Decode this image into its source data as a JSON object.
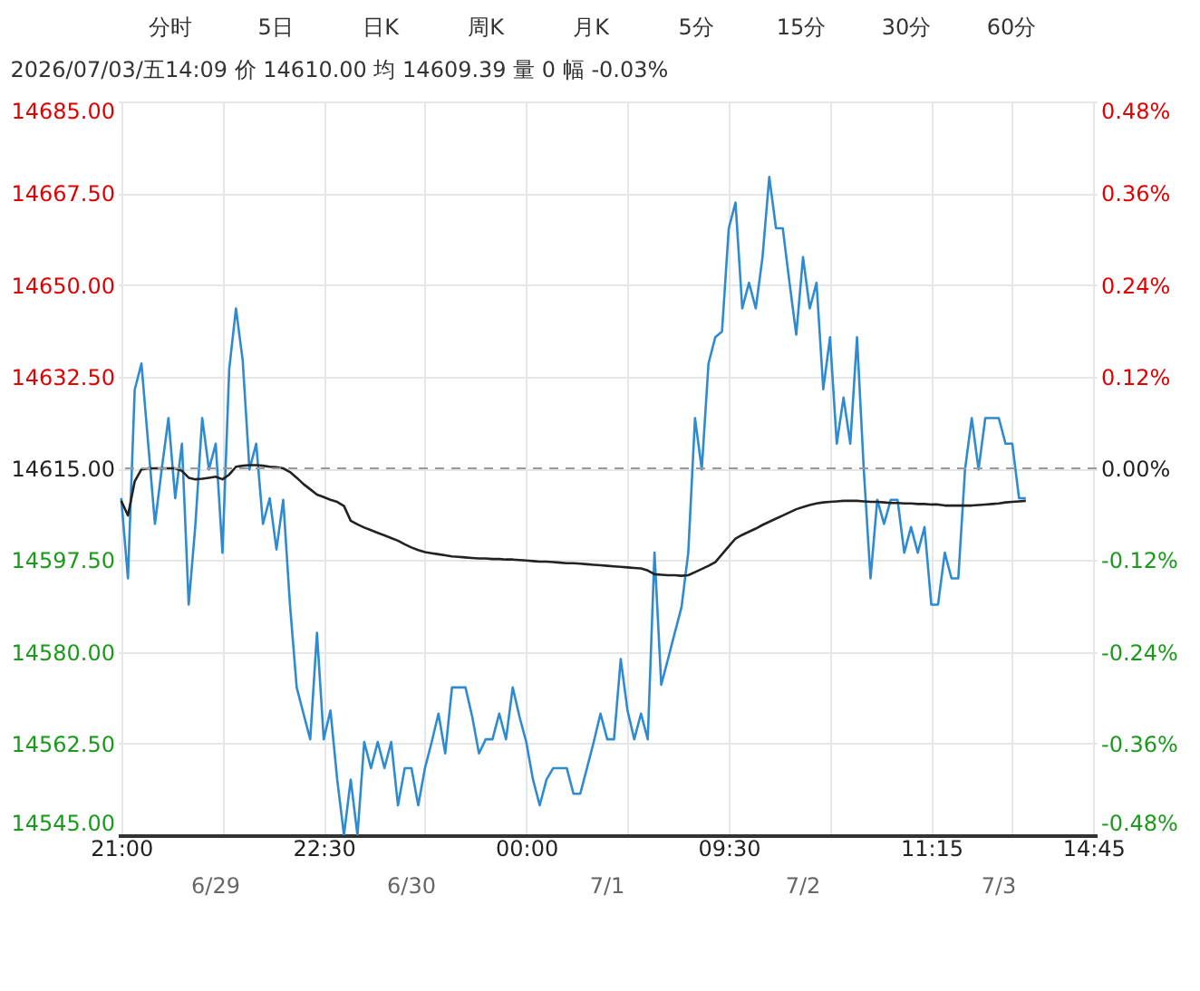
{
  "chart_data": {
    "type": "line",
    "title": "2026/07/03/五14:09  价 14610.00  均 14609.39  量 0  幅 -0.03%",
    "annotations": [
      "分时",
      "5日",
      "日K",
      "周K",
      "月K",
      "5分",
      "15分",
      "30分",
      "60分",
      "6/29",
      "6/30",
      "7/1",
      "7/2",
      "7/3"
    ],
    "categories": [
      "21:00",
      null,
      null,
      null,
      null,
      null,
      null,
      null,
      null,
      null,
      null,
      null,
      null,
      null,
      null,
      null,
      null,
      null,
      null,
      null,
      null,
      null,
      null,
      null,
      null,
      null,
      null,
      null,
      null,
      null,
      "22:30",
      null,
      null,
      null,
      null,
      null,
      null,
      null,
      null,
      null,
      null,
      null,
      null,
      null,
      null,
      null,
      null,
      null,
      null,
      null,
      null,
      null,
      null,
      null,
      null,
      null,
      null,
      null,
      null,
      null,
      "00:00",
      null,
      null,
      null,
      null,
      null,
      null,
      null,
      null,
      null,
      null,
      null,
      null,
      null,
      null,
      null,
      null,
      null,
      null,
      null,
      null,
      null,
      null,
      null,
      null,
      null,
      null,
      null,
      null,
      null,
      "09:30",
      null,
      null,
      null,
      null,
      null,
      null,
      null,
      null,
      null,
      null,
      null,
      null,
      null,
      null,
      null,
      null,
      null,
      null,
      null,
      null,
      null,
      null,
      null,
      null,
      null,
      null,
      null,
      null,
      null,
      "11:15",
      null,
      null,
      null,
      null,
      null,
      null,
      null,
      null,
      null,
      null,
      null,
      null,
      null,
      null,
      null,
      null,
      null,
      null,
      null,
      null,
      null,
      null,
      null,
      "14:45"
    ],
    "series": [
      {
        "color": "#2f8bd0",
        "values": [
          14609.3,
          14594,
          14630,
          14635,
          14619.7,
          14604.4,
          14614.8,
          14624.6,
          14609.3,
          14619.7,
          14589,
          14604.4,
          14624.6,
          14614.8,
          14619.7,
          14598.9,
          14633.9,
          14645.5,
          14635.6,
          14614.8,
          14619.7,
          14604.4,
          14609.3,
          14599.5,
          14609,
          14589,
          14573.2,
          14568.2,
          14563.3,
          14583.6,
          14563.3,
          14568.8,
          14555.6,
          14545,
          14555.6,
          14545,
          14562.8,
          14557.8,
          14562.8,
          14557.8,
          14562.8,
          14550.7,
          14557.8,
          14557.8,
          14550.7,
          14557.8,
          14562.8,
          14568.2,
          14560.6,
          14573.2,
          14573.2,
          14573.2,
          14567.6,
          14560.6,
          14563.3,
          14563.3,
          14568.2,
          14563.3,
          14573.2,
          14567.6,
          14562.8,
          14555.6,
          14550.7,
          14555.6,
          14557.8,
          14557.8,
          14557.8,
          14552.9,
          14552.9,
          14557.8,
          14562.8,
          14568.2,
          14563.3,
          14563.3,
          14578.6,
          14568.8,
          14563.3,
          14568.2,
          14563.3,
          14598.9,
          14573.7,
          14578.6,
          14583.6,
          14588.5,
          14598.9,
          14624.6,
          14614.8,
          14635,
          14640,
          14641.1,
          14660.8,
          14665.7,
          14645.5,
          14650.4,
          14645.5,
          14655.3,
          14670.6,
          14660.8,
          14660.8,
          14650.4,
          14640.5,
          14655.3,
          14645.5,
          14650.4,
          14630.1,
          14640,
          14619.7,
          14628.5,
          14619.7,
          14640,
          14614.8,
          14594,
          14609,
          14604.4,
          14609,
          14609,
          14598.9,
          14603.8,
          14598.9,
          14603.8,
          14589,
          14589,
          14598.9,
          14594,
          14594,
          14614.8,
          14624.6,
          14614.8,
          14624.6,
          14624.6,
          14624.6,
          14619.7,
          14619.7,
          14609.3,
          14609.3,
          null,
          null,
          null,
          null,
          null,
          null,
          null,
          null,
          null,
          null
        ]
      },
      {
        "color": "#222222",
        "values": [
          14608.8,
          14606,
          14612.5,
          14614.8,
          14615,
          14615,
          14615,
          14615,
          14615,
          14614.5,
          14613.2,
          14612.9,
          14613,
          14613.2,
          14613.4,
          14612.9,
          14613.8,
          14615.3,
          14615.5,
          14615.6,
          14615.6,
          14615.5,
          14615.3,
          14615.2,
          14615,
          14614.3,
          14613.2,
          14612,
          14611,
          14610,
          14609.5,
          14609,
          14608.6,
          14607.8,
          14605,
          14604.3,
          14603.7,
          14603.2,
          14602.7,
          14602.2,
          14601.7,
          14601.2,
          14600.5,
          14599.9,
          14599.4,
          14599,
          14598.8,
          14598.6,
          14598.4,
          14598.2,
          14598.1,
          14598,
          14597.9,
          14597.8,
          14597.8,
          14597.7,
          14597.7,
          14597.6,
          14597.6,
          14597.5,
          14597.4,
          14597.3,
          14597.2,
          14597.2,
          14597.1,
          14597,
          14596.9,
          14596.9,
          14596.8,
          14596.7,
          14596.6,
          14596.5,
          14596.4,
          14596.3,
          14596.2,
          14596.1,
          14596,
          14595.9,
          14595.5,
          14594.8,
          14594.7,
          14594.6,
          14594.6,
          14594.5,
          14594.6,
          14595.2,
          14595.8,
          14596.4,
          14597.1,
          14598.6,
          14600.1,
          14601.6,
          14602.3,
          14602.9,
          14603.5,
          14604.2,
          14604.8,
          14605.4,
          14606,
          14606.6,
          14607.2,
          14607.6,
          14608,
          14608.3,
          14608.5,
          14608.6,
          14608.7,
          14608.8,
          14608.8,
          14608.8,
          14608.7,
          14608.6,
          14608.6,
          14608.5,
          14608.4,
          14608.4,
          14608.3,
          14608.3,
          14608.2,
          14608.2,
          14608.1,
          14608.1,
          14607.9,
          14607.9,
          14607.9,
          14607.9,
          14607.9,
          14608,
          14608.1,
          14608.2,
          14608.3,
          14608.5,
          14608.6,
          14608.7,
          14608.8,
          null,
          null,
          null,
          null,
          null,
          null,
          null,
          null,
          null,
          null
        ]
      }
    ],
    "ylim": [
      14545,
      14685
    ],
    "yticks": [
      {
        "value": 14545,
        "label": "14545.00"
      },
      {
        "value": 14562.5,
        "label": "14562.50"
      },
      {
        "value": 14580,
        "label": "14580.00"
      },
      {
        "value": 14597.5,
        "label": "14597.50"
      },
      {
        "value": 14615,
        "label": "14615.00"
      },
      {
        "value": 14632.5,
        "label": "14632.50"
      },
      {
        "value": 14650,
        "label": "14650.00"
      },
      {
        "value": 14667.5,
        "label": "14667.50"
      },
      {
        "value": 14685,
        "label": "14685.00"
      }
    ],
    "y2lim": [
      -0.48,
      0.48
    ],
    "y2ticks": [
      {
        "value": -0.48,
        "label": "-0.48%"
      },
      {
        "value": -0.36,
        "label": "-0.36%"
      },
      {
        "value": -0.24,
        "label": "-0.24%"
      },
      {
        "value": -0.12,
        "label": "-0.12%"
      },
      {
        "value": 0,
        "label": "0.00%"
      },
      {
        "value": 0.12,
        "label": "0.12%"
      },
      {
        "value": 0.24,
        "label": "0.24%"
      },
      {
        "value": 0.36,
        "label": "0.36%"
      },
      {
        "value": 0.48,
        "label": "0.48%"
      }
    ],
    "ref_lines": [
      {
        "axis": "y",
        "value": 14615,
        "color": "#999999",
        "line_style": "dashed"
      }
    ],
    "grid": true,
    "marker": "none",
    "line_style": "solid"
  }
}
